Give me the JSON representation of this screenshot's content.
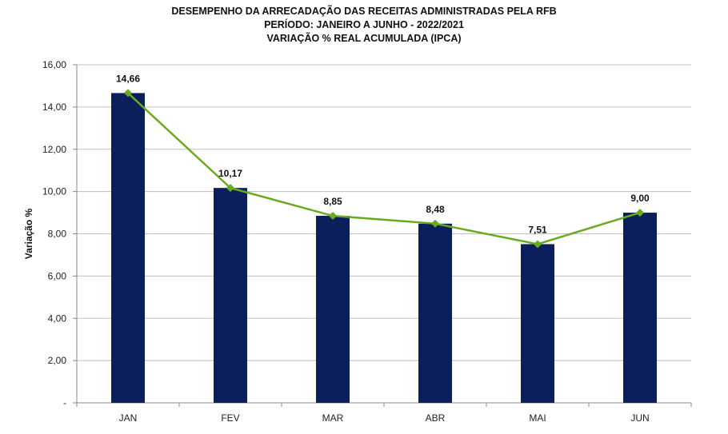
{
  "chart_data": {
    "type": "bar",
    "title_lines": [
      "DESEMPENHO DA ARRECADAÇÃO DAS RECEITAS ADMINISTRADAS PELA RFB",
      "PERÍODO: JANEIRO A JUNHO - 2022/2021",
      "VARIAÇÃO % REAL ACUMULADA (IPCA)"
    ],
    "ylabel": "Variação %",
    "xlabel": "",
    "categories": [
      "JAN",
      "FEV",
      "MAR",
      "ABR",
      "MAI",
      "JUN"
    ],
    "values": [
      14.66,
      10.17,
      8.85,
      8.48,
      7.51,
      9.0
    ],
    "data_labels": [
      "14,66",
      "10,17",
      "8,85",
      "8,48",
      "7,51",
      "9,00"
    ],
    "overlay_line": true,
    "ylim": [
      0,
      16
    ],
    "yticks": [
      0,
      2,
      4,
      6,
      8,
      10,
      12,
      14,
      16
    ],
    "ytick_labels": [
      "-",
      "2,00",
      "4,00",
      "6,00",
      "8,00",
      "10,00",
      "12,00",
      "14,00",
      "16,00"
    ],
    "grid": true,
    "legend": "none"
  },
  "colors": {
    "bar": "#0b1f5c",
    "line": "#6aaa1e",
    "grid": "#bfbfbf",
    "axis": "#888888"
  }
}
